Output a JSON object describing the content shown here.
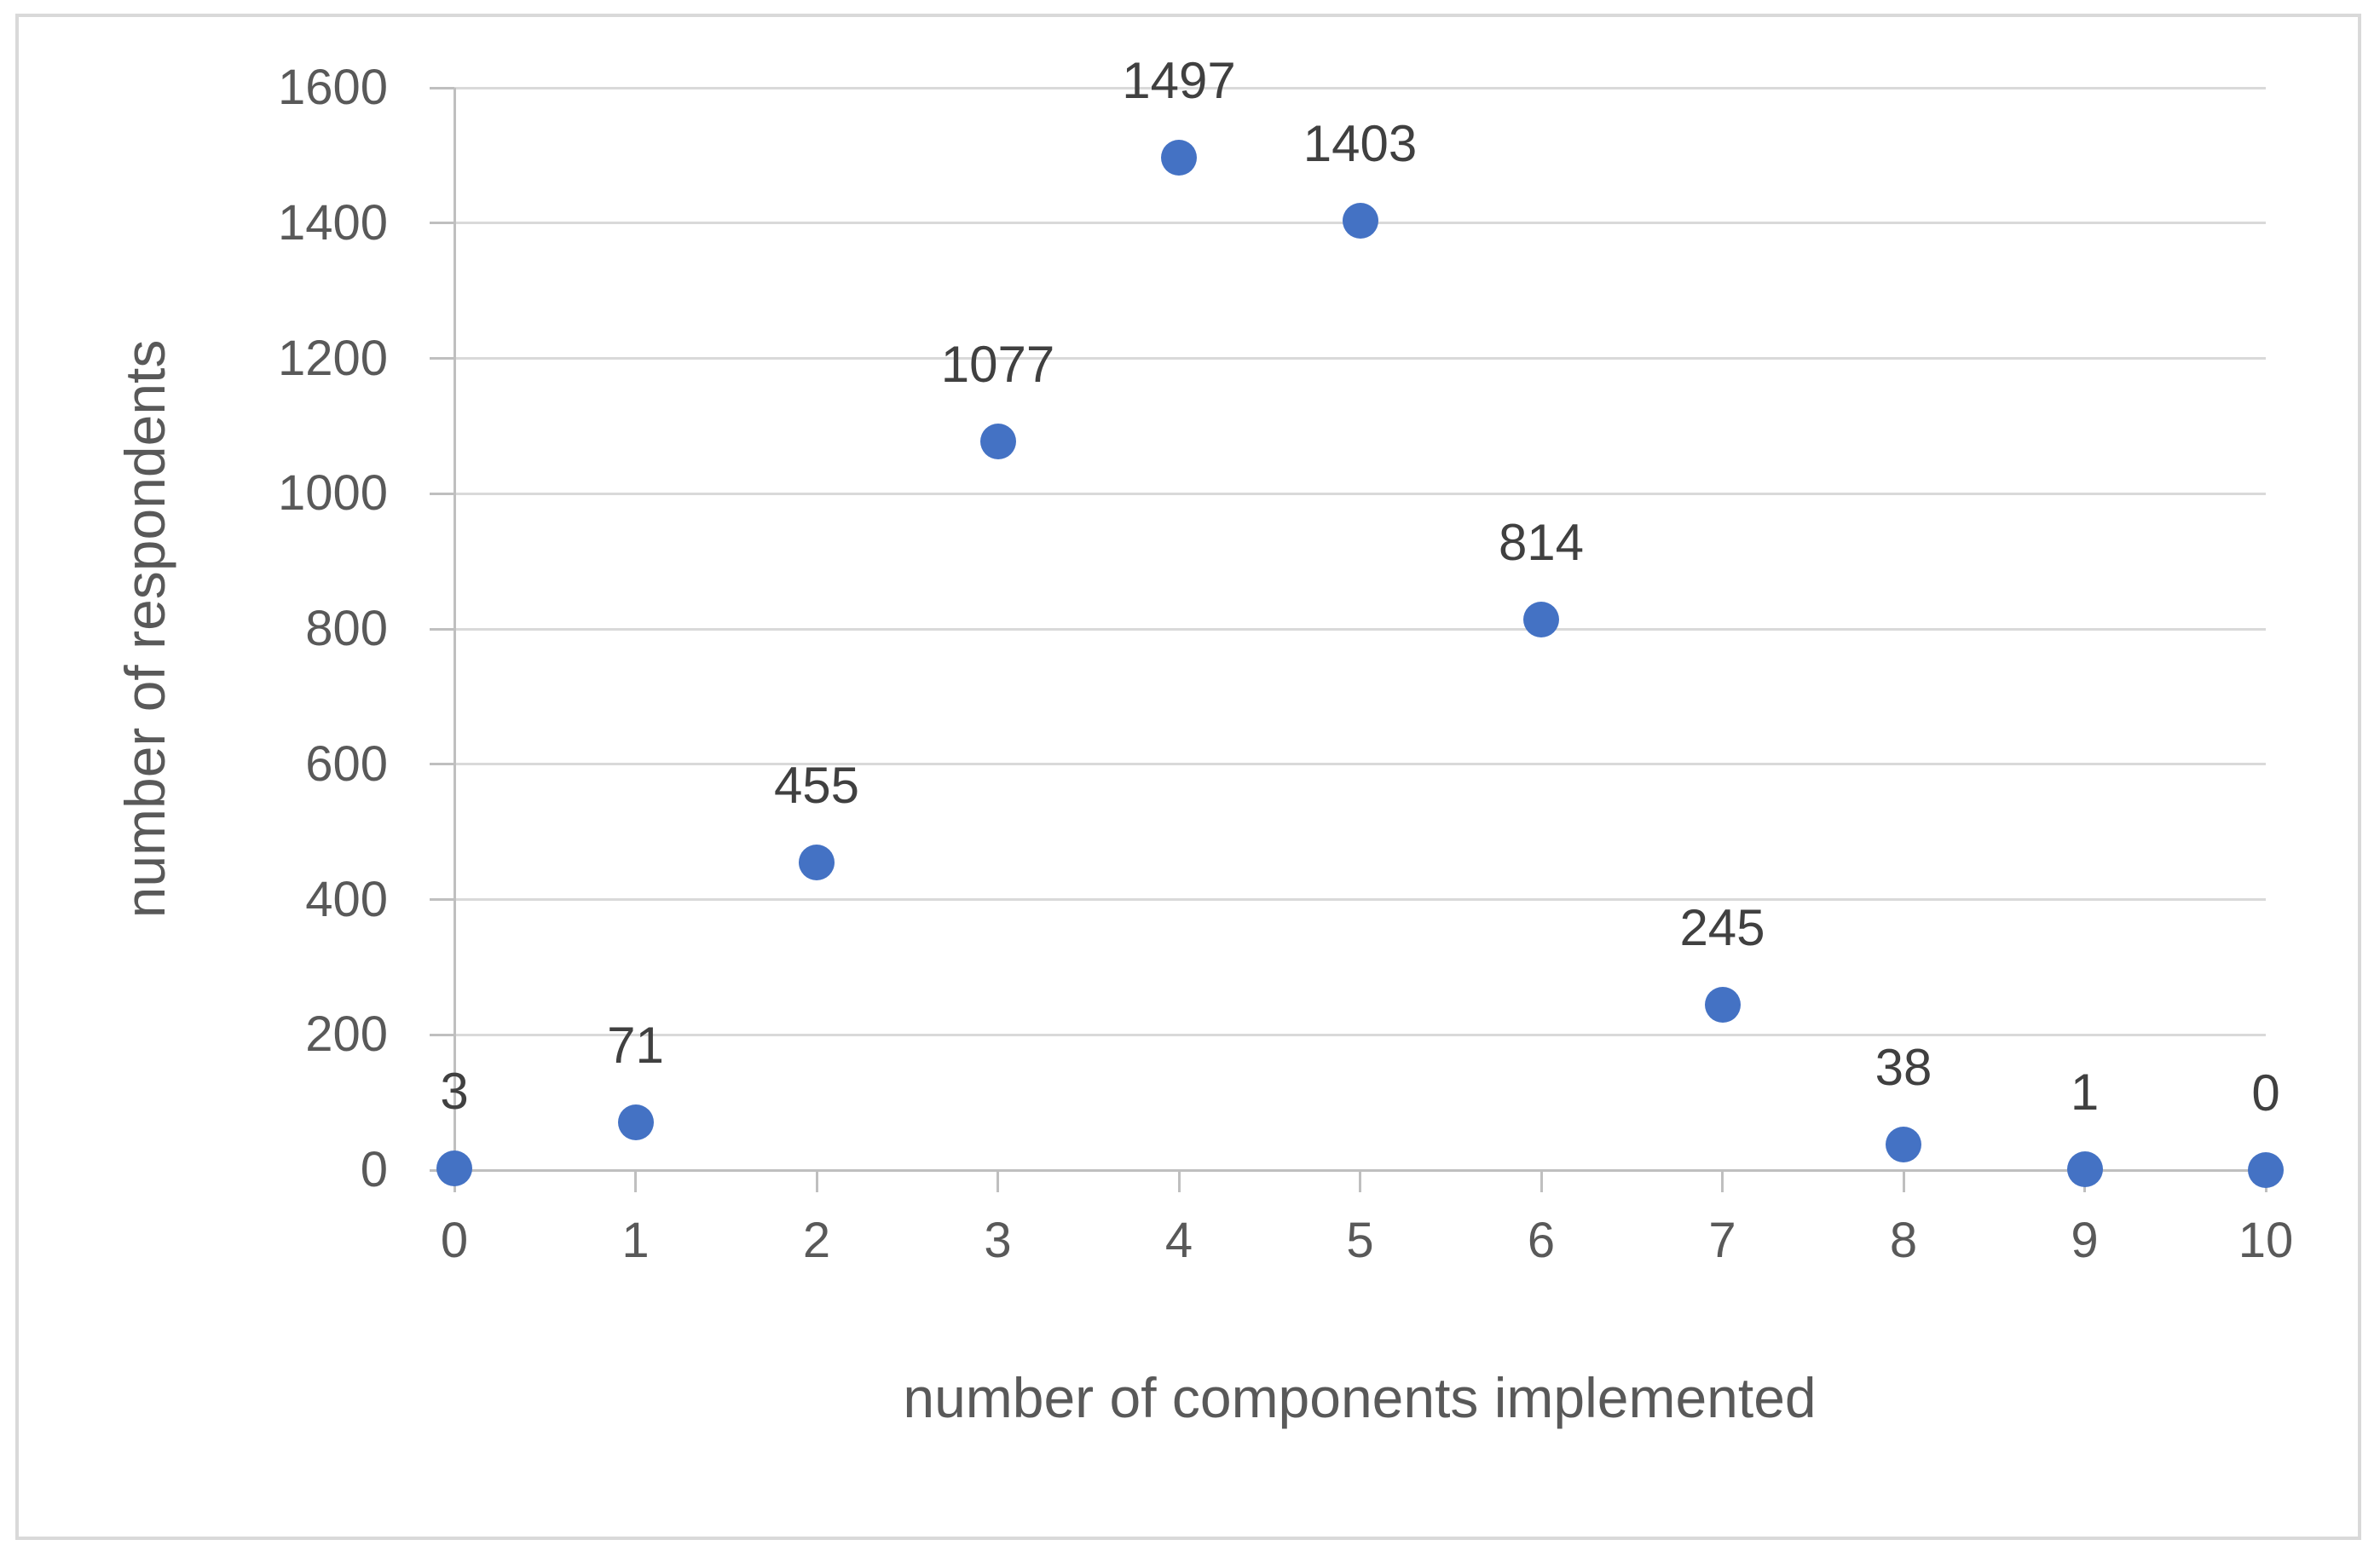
{
  "chart_data": {
    "type": "scatter",
    "title": "",
    "xlabel": "number of components implemented",
    "ylabel": "number of respondents",
    "x": [
      0,
      1,
      2,
      3,
      4,
      5,
      6,
      7,
      8,
      9,
      10
    ],
    "values": [
      3,
      71,
      455,
      1077,
      1497,
      1403,
      814,
      245,
      38,
      1,
      0
    ],
    "data_labels": [
      "3",
      "71",
      "455",
      "1077",
      "1497",
      "1403",
      "814",
      "245",
      "38",
      "1",
      "0"
    ],
    "xticks": [
      "0",
      "1",
      "2",
      "3",
      "4",
      "5",
      "6",
      "7",
      "8",
      "9",
      "10"
    ],
    "yticks": [
      0,
      200,
      400,
      600,
      800,
      1000,
      1200,
      1400,
      1600
    ],
    "xlim": [
      0,
      10
    ],
    "ylim": [
      0,
      1600
    ],
    "grid": "horizontal",
    "legend": "none",
    "marker": "circle",
    "colors": {
      "point": "#4472C4",
      "gridline": "#D9D9D9",
      "axis_line": "#BFBFBF",
      "tick_label": "#595959",
      "axis_title": "#595959",
      "data_label": "#404040",
      "border": "#D9D9D9",
      "background": "#FFFFFF"
    }
  }
}
